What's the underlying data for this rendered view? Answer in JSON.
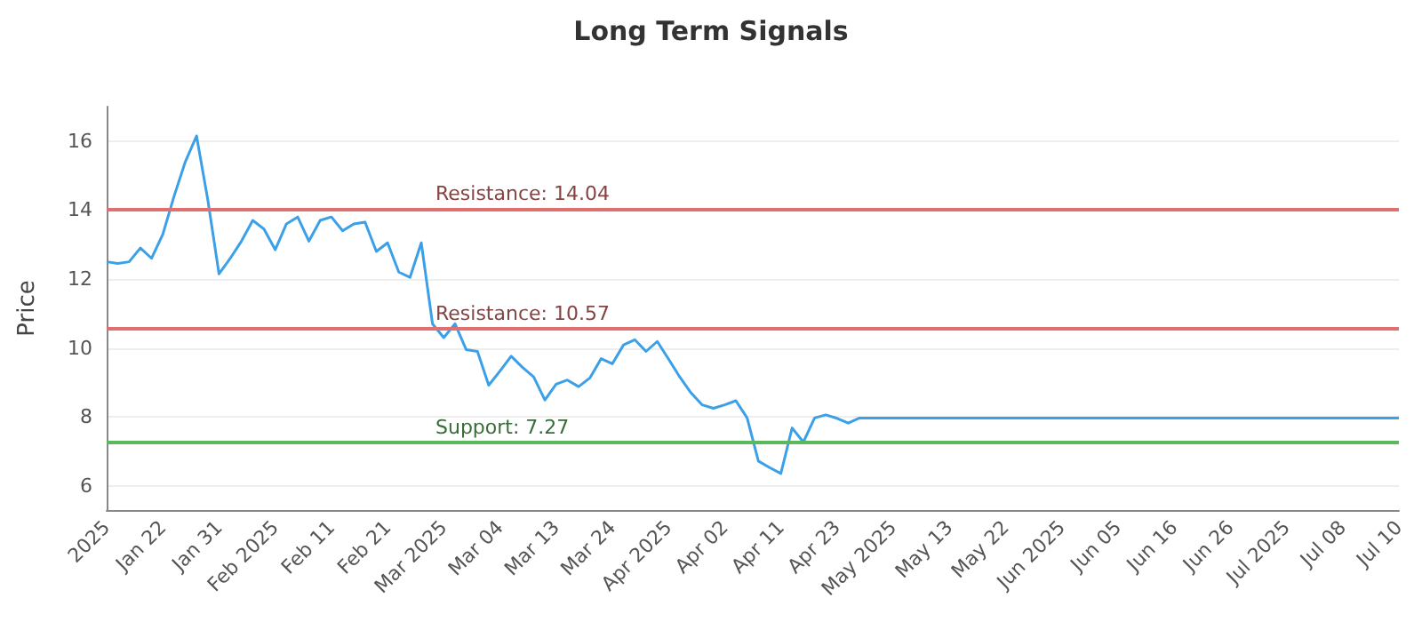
{
  "chart_data": {
    "type": "line",
    "title": "Long Term Signals",
    "ylabel": "Price",
    "categories": [
      "2025",
      null,
      null,
      null,
      null,
      "Jan 22",
      null,
      null,
      null,
      null,
      "Jan 31",
      null,
      null,
      null,
      null,
      "Feb 2025",
      null,
      null,
      null,
      null,
      "Feb 11",
      null,
      null,
      null,
      null,
      "Feb 21",
      null,
      null,
      null,
      null,
      "Mar 2025",
      null,
      null,
      null,
      null,
      "Mar 04",
      null,
      null,
      null,
      null,
      "Mar 13",
      null,
      null,
      null,
      null,
      "Mar 24",
      null,
      null,
      null,
      null,
      "Apr 2025",
      null,
      null,
      null,
      null,
      "Apr 02",
      null,
      null,
      null,
      null,
      "Apr 11",
      null,
      null,
      null,
      null,
      "Apr 23",
      null,
      null,
      null,
      null,
      "May 2025",
      null,
      null,
      null,
      null,
      "May 13",
      null,
      null,
      null,
      null,
      "May 22",
      null,
      null,
      null,
      null,
      "Jun 2025",
      null,
      null,
      null,
      null,
      "Jun 05",
      null,
      null,
      null,
      null,
      "Jun 16",
      null,
      null,
      null,
      null,
      "Jun 26",
      null,
      null,
      null,
      null,
      "Jul 2025",
      null,
      null,
      null,
      null,
      "Jul 08",
      null,
      null,
      null,
      null,
      "Jul 10"
    ],
    "series": [
      {
        "color": "#3ca0e8",
        "values": [
          12.5,
          12.45,
          12.5,
          12.9,
          12.6,
          13.3,
          14.4,
          15.4,
          16.15,
          14.3,
          12.15,
          12.6,
          13.1,
          13.7,
          13.45,
          12.85,
          13.6,
          13.8,
          13.1,
          13.7,
          13.8,
          13.4,
          13.6,
          13.65,
          12.8,
          13.05,
          12.2,
          12.05,
          13.05,
          10.7,
          10.3,
          10.7,
          9.95,
          9.9,
          8.92,
          9.33,
          9.76,
          9.44,
          9.16,
          8.49,
          8.95,
          9.07,
          8.88,
          9.13,
          9.69,
          9.54,
          10.09,
          10.24,
          9.9,
          10.19,
          9.68,
          9.16,
          8.7,
          8.35,
          8.25,
          8.35,
          8.47,
          7.97,
          6.72,
          6.53,
          6.36,
          7.68,
          7.27,
          7.97,
          8.06,
          7.96,
          7.82,
          7.97,
          7.97,
          7.97,
          7.97,
          7.97,
          7.97,
          7.97,
          7.97,
          7.97,
          7.97,
          7.97,
          7.97,
          7.97,
          7.97,
          7.97,
          7.97,
          7.97,
          7.97,
          7.97,
          7.97,
          7.97,
          7.97,
          7.97,
          7.97,
          7.97,
          7.97,
          7.97,
          7.97,
          7.97,
          7.97,
          7.97,
          7.97,
          7.97,
          7.97,
          7.97,
          7.97,
          7.97,
          7.97,
          7.97,
          7.97,
          7.97,
          7.97,
          7.97,
          7.97,
          7.97,
          7.97,
          7.97,
          7.97,
          7.97
        ]
      }
    ],
    "ylim": [
      5.3,
      17
    ],
    "yticks": [
      6,
      8,
      10,
      12,
      14,
      16
    ],
    "grid": "y",
    "marker": "none",
    "line_style": "solid",
    "ref_lines": [
      {
        "axis": "y",
        "value": 14.04,
        "label": "Resistance: 14.04",
        "color": "#e07070"
      },
      {
        "axis": "y",
        "value": 10.57,
        "label": "Resistance: 10.57",
        "color": "#e07070"
      },
      {
        "axis": "y",
        "value": 7.27,
        "label": "Support: 7.27",
        "color": "#5cb85c"
      }
    ]
  }
}
